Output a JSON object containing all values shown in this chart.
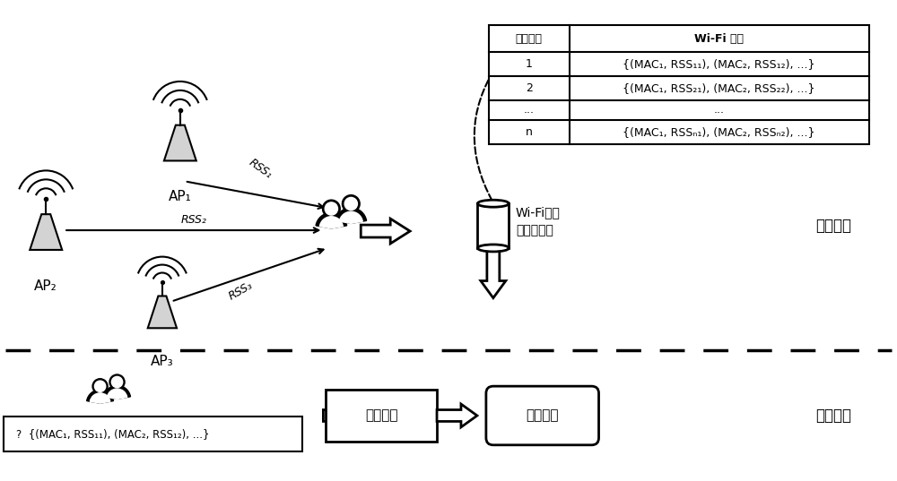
{
  "bg_color": "#ffffff",
  "line_color": "#000000",
  "dashed_line_color": "#333333",
  "table_header_row": [
    "格网编号",
    "Wi-Fi 指纹"
  ],
  "table_rows": [
    [
      "1",
      "{(MAC₁, RSS₁₁), (MAC₂, RSS₁₂), ...}"
    ],
    [
      "2",
      "{(MAC₁, RSS₂₁), (MAC₂, RSS₂₂), ...}"
    ],
    [
      "...",
      "..."
    ],
    [
      "n",
      "{(MAC₁, RSSₙ₁), (MAC₂, RSSₙ₂), ...}"
    ]
  ],
  "label_offline": "离线采集",
  "label_online": "在线定位",
  "label_db": "Wi-Fi位置\n指纹数据库",
  "label_algo": "定位算法",
  "label_pos": "位置信息",
  "label_ap1": "AP₁",
  "label_ap2": "AP₂",
  "label_ap3": "AP₃",
  "label_rss1": "RSS₁",
  "label_rss2": "RSS₂",
  "label_rss3": "RSS₃",
  "label_bottom_box": "?  {(MAC₁, RSS₁₁), (MAC₂, RSS₁₂), ...}"
}
